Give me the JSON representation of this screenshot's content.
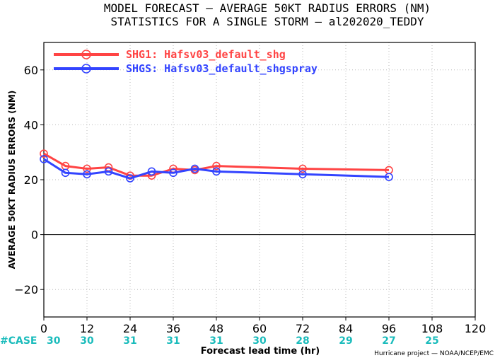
{
  "chart_data": {
    "type": "line",
    "title": "MODEL FORECAST — AVERAGE 50KT RADIUS ERRORS (NM)",
    "subtitle": "STATISTICS FOR A SINGLE STORM — al202020_TEDDY",
    "xlabel": "Forecast lead time (hr)",
    "ylabel": "AVERAGE 50KT RADIUS ERRORS (NM)",
    "xlim": [
      0,
      120
    ],
    "ylim": [
      -30,
      70
    ],
    "x_ticks": [
      0,
      12,
      24,
      36,
      48,
      60,
      72,
      84,
      96,
      108,
      120
    ],
    "x_tick_labels": [
      "0",
      "12",
      "24",
      "36",
      "48",
      "60",
      "72",
      "84",
      "96",
      "108",
      "120"
    ],
    "y_ticks": [
      -20,
      0,
      20,
      40,
      60
    ],
    "y_tick_labels": [
      "−20",
      "0",
      "20",
      "40",
      "60"
    ],
    "grid": true,
    "legend_position": "top-left",
    "series": [
      {
        "name": "SHG1: Hafsv03_default_shg",
        "color": "#ff4444",
        "x": [
          0,
          6,
          12,
          18,
          24,
          30,
          36,
          42,
          48,
          72,
          96
        ],
        "y": [
          29.5,
          25.0,
          24.0,
          24.5,
          21.5,
          21.5,
          24.0,
          23.5,
          25.0,
          24.0,
          23.5
        ]
      },
      {
        "name": "SHGS: Hafsv03_default_shgspray",
        "color": "#3344ff",
        "x": [
          0,
          6,
          12,
          18,
          24,
          30,
          36,
          42,
          48,
          72,
          96
        ],
        "y": [
          27.5,
          22.5,
          22.0,
          23.0,
          20.5,
          23.0,
          22.5,
          24.0,
          23.0,
          22.0,
          21.0
        ]
      }
    ],
    "case_label": "#CASE",
    "cases": [
      {
        "x": 0,
        "n": "30"
      },
      {
        "x": 12,
        "n": "30"
      },
      {
        "x": 24,
        "n": "31"
      },
      {
        "x": 36,
        "n": "31"
      },
      {
        "x": 48,
        "n": "31"
      },
      {
        "x": 60,
        "n": "30"
      },
      {
        "x": 72,
        "n": "28"
      },
      {
        "x": 84,
        "n": "29"
      },
      {
        "x": 96,
        "n": "27"
      },
      {
        "x": 108,
        "n": "25"
      }
    ],
    "credit": "Hurricane project — NOAA/NCEP/EMC"
  }
}
